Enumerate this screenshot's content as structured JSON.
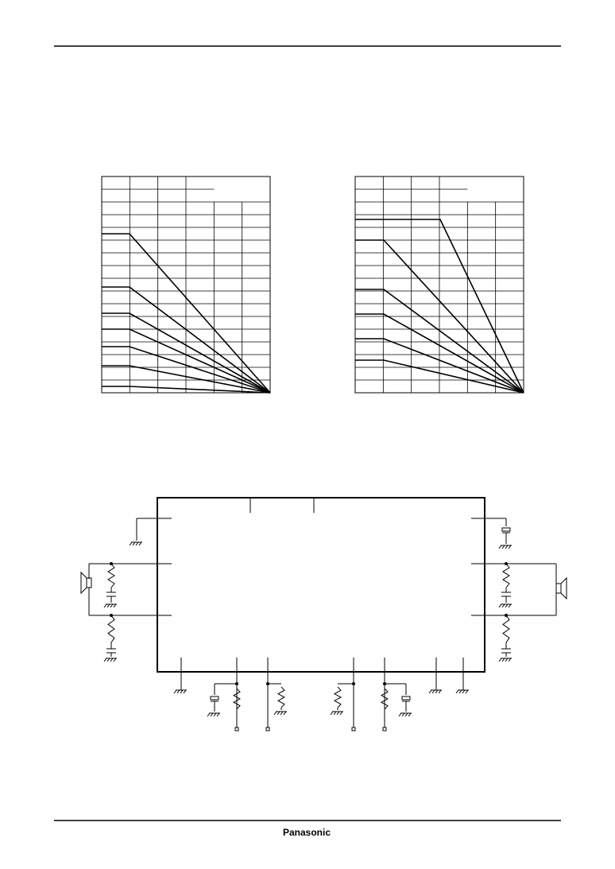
{
  "footer": {
    "brand": "Panasonic"
  }
}
